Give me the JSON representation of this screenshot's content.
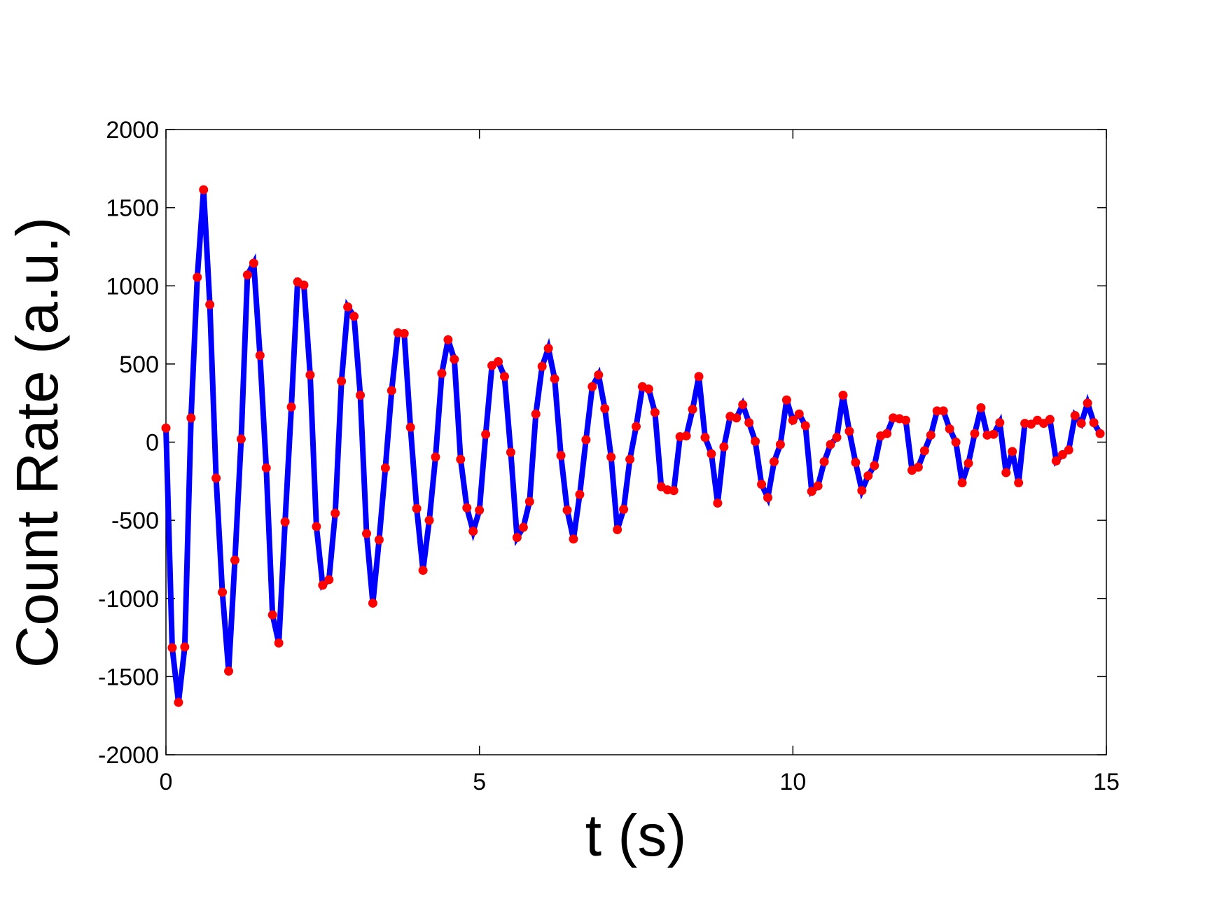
{
  "chart_data": {
    "type": "line",
    "xlabel": "t (s)",
    "ylabel": "Count Rate (a.u.)",
    "xlim": [
      0,
      15
    ],
    "ylim": [
      -2000,
      2000
    ],
    "xticks": [
      0,
      5,
      10,
      15
    ],
    "yticks": [
      -2000,
      -1500,
      -1000,
      -500,
      0,
      500,
      1000,
      1500,
      2000
    ],
    "grid": false,
    "x": [
      0,
      0.1,
      0.2,
      0.3,
      0.4,
      0.5,
      0.6,
      0.7,
      0.8,
      0.9,
      1,
      1.1,
      1.2,
      1.3,
      1.4,
      1.5,
      1.6,
      1.7,
      1.8,
      1.9,
      2,
      2.1,
      2.2,
      2.3,
      2.4,
      2.5,
      2.6,
      2.7,
      2.8,
      2.9,
      3,
      3.1,
      3.2,
      3.3,
      3.4,
      3.5,
      3.6,
      3.7,
      3.8,
      3.9,
      4,
      4.1,
      4.2,
      4.3,
      4.4,
      4.5,
      4.6,
      4.7,
      4.8,
      4.9,
      5,
      5.1,
      5.2,
      5.3,
      5.4,
      5.5,
      5.6,
      5.7,
      5.8,
      5.9,
      6,
      6.1,
      6.2,
      6.3,
      6.4,
      6.5,
      6.6,
      6.7,
      6.8,
      6.9,
      7,
      7.1,
      7.2,
      7.3,
      7.4,
      7.5,
      7.6,
      7.7,
      7.8,
      7.9,
      8,
      8.1,
      8.2,
      8.3,
      8.4,
      8.5,
      8.6,
      8.7,
      8.8,
      8.9,
      9,
      9.1,
      9.2,
      9.3,
      9.4,
      9.5,
      9.6,
      9.7,
      9.8,
      9.9,
      10,
      10.1,
      10.2,
      10.3,
      10.4,
      10.5,
      10.6,
      10.7,
      10.8,
      10.9,
      11,
      11.1,
      11.2,
      11.3,
      11.4,
      11.5,
      11.6,
      11.7,
      11.8,
      11.9,
      12,
      12.1,
      12.2,
      12.3,
      12.4,
      12.5,
      12.6,
      12.7,
      12.8,
      12.9,
      13,
      13.1,
      13.2,
      13.3,
      13.4,
      13.5,
      13.6,
      13.7,
      13.8,
      13.9,
      14,
      14.1,
      14.2,
      14.3,
      14.4,
      14.5,
      14.6,
      14.7,
      14.8,
      14.9
    ],
    "series": [
      {
        "color": "#0000ff",
        "marker_color": "#ff0000",
        "values": [
          90,
          -1315,
          -1665,
          -1310,
          155,
          1055,
          1615,
          880,
          -230,
          -960,
          -1465,
          -755,
          20,
          1070,
          1145,
          555,
          -165,
          -1105,
          -1285,
          -510,
          225,
          1025,
          1005,
          430,
          -540,
          -915,
          -880,
          -455,
          390,
          865,
          805,
          300,
          -585,
          -1030,
          -625,
          -165,
          330,
          700,
          695,
          95,
          -425,
          -820,
          -500,
          -95,
          440,
          655,
          530,
          -110,
          -420,
          -570,
          -435,
          50,
          490,
          515,
          420,
          -65,
          -610,
          -545,
          -380,
          180,
          485,
          600,
          405,
          -85,
          -435,
          -620,
          -335,
          15,
          355,
          430,
          215,
          -95,
          -560,
          -430,
          -110,
          100,
          355,
          340,
          190,
          -285,
          -305,
          -310,
          35,
          40,
          210,
          420,
          30,
          -75,
          -390,
          -30,
          165,
          155,
          240,
          125,
          5,
          -270,
          -355,
          -125,
          -15,
          270,
          140,
          180,
          105,
          -315,
          -280,
          -125,
          -15,
          30,
          300,
          70,
          -130,
          -310,
          -215,
          -150,
          40,
          55,
          155,
          150,
          140,
          -180,
          -160,
          -55,
          45,
          200,
          200,
          85,
          0,
          -260,
          -135,
          55,
          220,
          45,
          50,
          125,
          -195,
          -60,
          -260,
          120,
          115,
          140,
          120,
          145,
          -120,
          -80,
          -50,
          170,
          120,
          250,
          125,
          55
        ]
      }
    ]
  }
}
